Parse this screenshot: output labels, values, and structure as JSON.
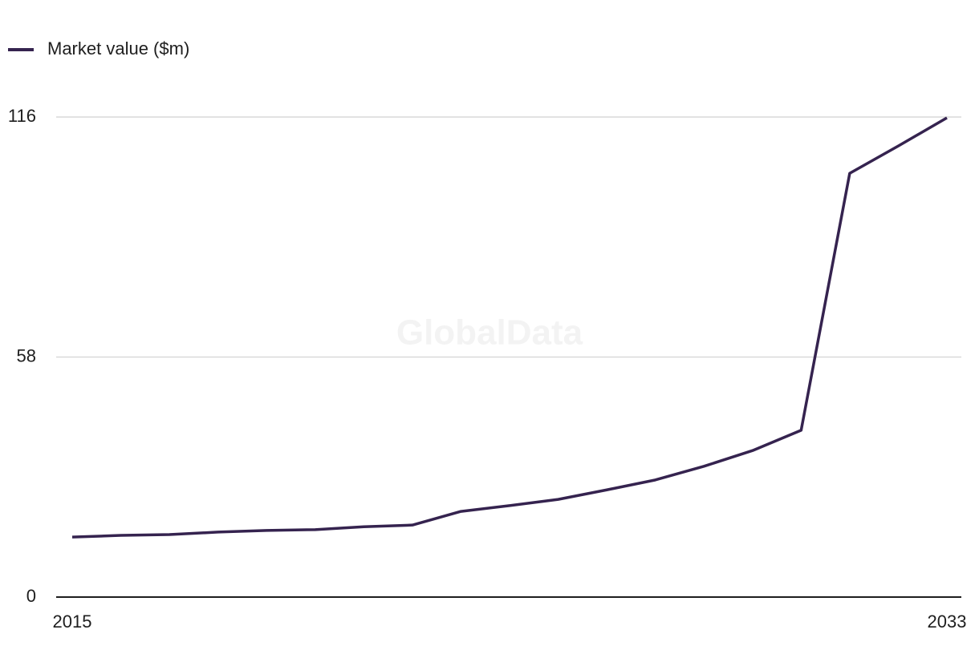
{
  "chart_data": {
    "type": "line",
    "legend_position": "top-left",
    "watermark": "GlobalData",
    "categories": [
      "2015",
      null,
      null,
      null,
      null,
      null,
      null,
      null,
      null,
      null,
      null,
      null,
      null,
      null,
      null,
      null,
      null,
      null,
      "2033"
    ],
    "series": [
      {
        "name": "Market value ($m)",
        "color": "#35234f",
        "values": [
          14.5,
          14.9,
          15.1,
          15.7,
          16.1,
          16.3,
          17.0,
          17.4,
          20.7,
          22.1,
          23.6,
          25.9,
          28.3,
          31.6,
          35.4,
          40.3,
          102.4,
          109.0,
          115.8
        ]
      }
    ],
    "ylim": [
      0,
      116
    ],
    "yticks": [
      0,
      58,
      116
    ],
    "grid": true
  }
}
